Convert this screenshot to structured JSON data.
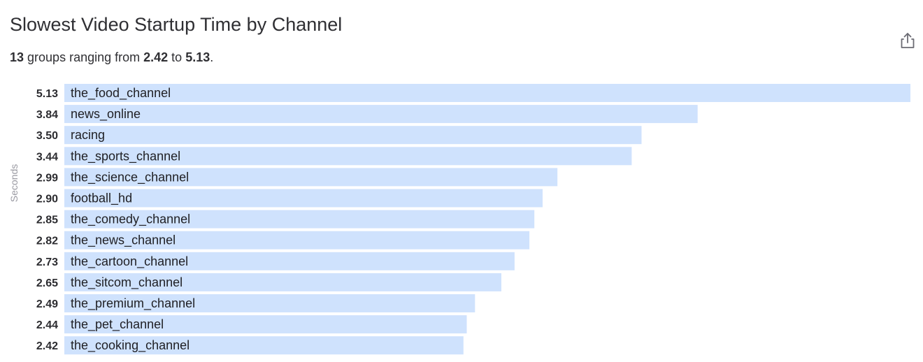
{
  "header": {
    "title": "Slowest Video Startup Time by Channel",
    "summary_count": "13",
    "summary_mid": " groups ranging from ",
    "summary_min": "2.42",
    "summary_to": " to ",
    "summary_max": "5.13",
    "summary_end": "."
  },
  "toolbar": {
    "export_icon": "share-export-icon"
  },
  "colors": {
    "bar": "#cfe2fd",
    "text": "#2c2c30",
    "axis_label": "#9a9aa2"
  },
  "chart_data": {
    "type": "bar",
    "orientation": "horizontal",
    "title": "Slowest Video Startup Time by Channel",
    "ylabel": "Seconds",
    "xlim": [
      0,
      5.13
    ],
    "grid": false,
    "legend": "none",
    "categories": [
      "the_food_channel",
      "news_online",
      "racing",
      "the_sports_channel",
      "the_science_channel",
      "football_hd",
      "the_comedy_channel",
      "the_news_channel",
      "the_cartoon_channel",
      "the_sitcom_channel",
      "the_premium_channel",
      "the_pet_channel",
      "the_cooking_channel"
    ],
    "values": [
      5.13,
      3.84,
      3.5,
      3.44,
      2.99,
      2.9,
      2.85,
      2.82,
      2.73,
      2.65,
      2.49,
      2.44,
      2.42
    ],
    "value_labels": [
      "5.13",
      "3.84",
      "3.50",
      "3.44",
      "2.99",
      "2.90",
      "2.85",
      "2.82",
      "2.73",
      "2.65",
      "2.49",
      "2.44",
      "2.42"
    ]
  }
}
